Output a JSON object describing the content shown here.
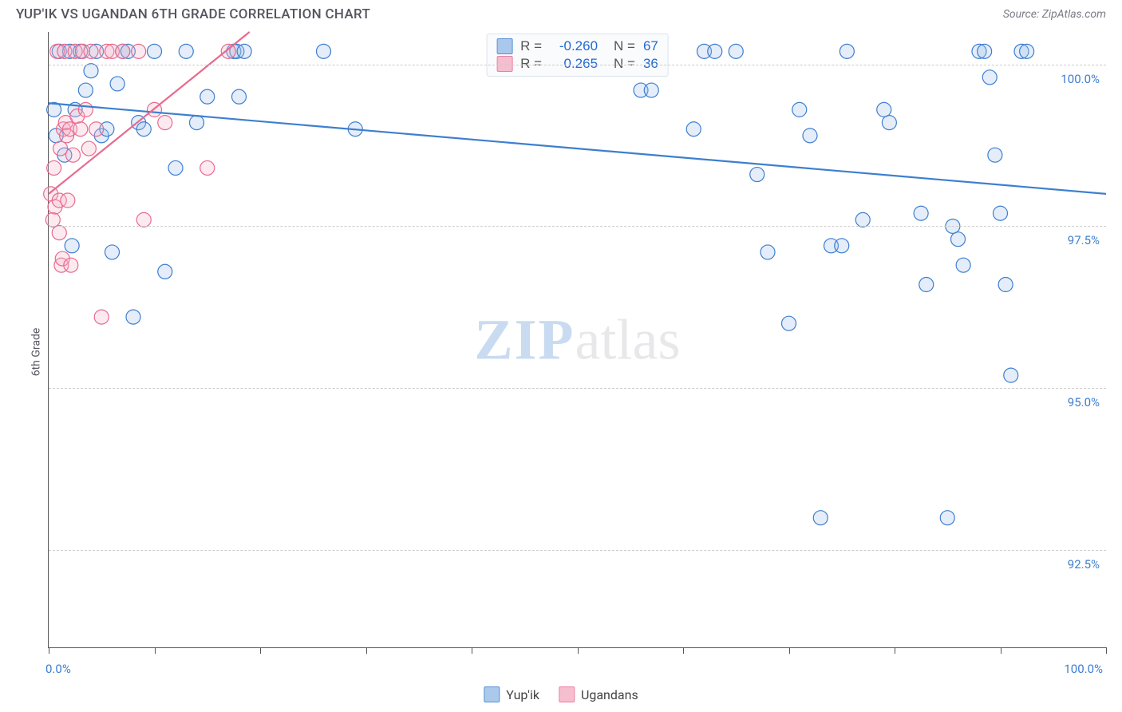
{
  "title": "YUP'IK VS UGANDAN 6TH GRADE CORRELATION CHART",
  "source": "Source: ZipAtlas.com",
  "y_axis_label": "6th Grade",
  "watermark": {
    "part1": "ZIP",
    "part2": "atlas"
  },
  "chart": {
    "type": "scatter",
    "background_color": "#ffffff",
    "grid_color": "#cfcfcf",
    "grid_dash": "4,4",
    "axis_color": "#555555",
    "xlim": [
      0,
      100
    ],
    "ylim": [
      91.0,
      100.5
    ],
    "x_ticks": [
      0,
      10,
      20,
      30,
      40,
      50,
      60,
      70,
      80,
      90,
      100
    ],
    "x_tick_labels": [
      {
        "pos": 0,
        "label": "0.0%"
      },
      {
        "pos": 100,
        "label": "100.0%"
      }
    ],
    "y_ticks": [
      {
        "pos": 92.5,
        "label": "92.5%"
      },
      {
        "pos": 95.0,
        "label": "95.0%"
      },
      {
        "pos": 97.5,
        "label": "97.5%"
      },
      {
        "pos": 100.0,
        "label": "100.0%"
      }
    ],
    "tick_label_color": "#3d7fcf",
    "tick_label_fontsize": 15,
    "marker_radius": 9,
    "marker_stroke_width": 1.2,
    "marker_fill_opacity": 0.28,
    "line_width": 2.2
  },
  "series": [
    {
      "name": "Yup'ik",
      "color": "#3d7fcf",
      "fill": "#9dc0e8",
      "R": "-0.260",
      "N": "67",
      "trend": {
        "x1": 0,
        "y1": 99.4,
        "x2": 100,
        "y2": 98.0
      },
      "points": [
        [
          0.5,
          99.3
        ],
        [
          0.7,
          98.9
        ],
        [
          1.0,
          100.2
        ],
        [
          1.5,
          98.6
        ],
        [
          2.0,
          100.2
        ],
        [
          2.2,
          97.2
        ],
        [
          2.5,
          99.3
        ],
        [
          3.0,
          100.2
        ],
        [
          3.5,
          99.6
        ],
        [
          4.0,
          99.9
        ],
        [
          4.5,
          100.2
        ],
        [
          5.0,
          98.9
        ],
        [
          5.5,
          99.0
        ],
        [
          6.0,
          97.1
        ],
        [
          6.5,
          99.7
        ],
        [
          7.0,
          100.2
        ],
        [
          7.5,
          100.2
        ],
        [
          8.0,
          96.1
        ],
        [
          8.5,
          99.1
        ],
        [
          9.0,
          99.0
        ],
        [
          10.0,
          100.2
        ],
        [
          11.0,
          96.8
        ],
        [
          12.0,
          98.4
        ],
        [
          13.0,
          100.2
        ],
        [
          14.0,
          99.1
        ],
        [
          15.0,
          99.5
        ],
        [
          17.5,
          100.2
        ],
        [
          17.8,
          100.2
        ],
        [
          18.0,
          99.5
        ],
        [
          18.5,
          100.2
        ],
        [
          26.0,
          100.2
        ],
        [
          29.0,
          99.0
        ],
        [
          47.0,
          100.2
        ],
        [
          55.0,
          100.2
        ],
        [
          56.0,
          99.6
        ],
        [
          57.0,
          99.6
        ],
        [
          61.0,
          99.0
        ],
        [
          62.0,
          100.2
        ],
        [
          63.0,
          100.2
        ],
        [
          65.0,
          100.2
        ],
        [
          67.0,
          98.3
        ],
        [
          68.0,
          97.1
        ],
        [
          70.0,
          96.0
        ],
        [
          71.0,
          99.3
        ],
        [
          72.0,
          98.9
        ],
        [
          73.0,
          93.0
        ],
        [
          74.0,
          97.2
        ],
        [
          75.0,
          97.2
        ],
        [
          75.5,
          100.2
        ],
        [
          77.0,
          97.6
        ],
        [
          79.0,
          99.3
        ],
        [
          79.5,
          99.1
        ],
        [
          82.5,
          97.7
        ],
        [
          83.0,
          96.6
        ],
        [
          85.0,
          93.0
        ],
        [
          85.5,
          97.5
        ],
        [
          86.0,
          97.3
        ],
        [
          86.5,
          96.9
        ],
        [
          88.0,
          100.2
        ],
        [
          88.5,
          100.2
        ],
        [
          89.0,
          99.8
        ],
        [
          89.5,
          98.6
        ],
        [
          90.0,
          97.7
        ],
        [
          90.5,
          96.6
        ],
        [
          91.0,
          95.2
        ],
        [
          92.0,
          100.2
        ],
        [
          92.5,
          100.2
        ]
      ]
    },
    {
      "name": "Ugandans",
      "color": "#e86a8f",
      "fill": "#f4b4c8",
      "R": "0.265",
      "N": "36",
      "trend": {
        "x1": 0,
        "y1": 98.0,
        "x2": 19,
        "y2": 100.5
      },
      "points": [
        [
          0.2,
          98.0
        ],
        [
          0.4,
          97.6
        ],
        [
          0.5,
          98.4
        ],
        [
          0.6,
          97.8
        ],
        [
          0.8,
          100.2
        ],
        [
          1.0,
          97.9
        ],
        [
          1.0,
          97.4
        ],
        [
          1.1,
          98.7
        ],
        [
          1.2,
          96.9
        ],
        [
          1.3,
          97.0
        ],
        [
          1.4,
          99.0
        ],
        [
          1.5,
          100.2
        ],
        [
          1.6,
          99.1
        ],
        [
          1.7,
          98.9
        ],
        [
          1.8,
          97.9
        ],
        [
          2.0,
          99.0
        ],
        [
          2.1,
          96.9
        ],
        [
          2.3,
          98.6
        ],
        [
          2.5,
          100.2
        ],
        [
          2.7,
          99.2
        ],
        [
          3.0,
          99.0
        ],
        [
          3.2,
          100.2
        ],
        [
          3.5,
          99.3
        ],
        [
          3.8,
          98.7
        ],
        [
          4.0,
          100.2
        ],
        [
          4.5,
          99.0
        ],
        [
          5.0,
          96.1
        ],
        [
          5.5,
          100.2
        ],
        [
          6.0,
          100.2
        ],
        [
          7.0,
          100.2
        ],
        [
          8.5,
          100.2
        ],
        [
          9.0,
          97.6
        ],
        [
          10.0,
          99.3
        ],
        [
          11.0,
          99.1
        ],
        [
          15.0,
          98.4
        ],
        [
          17.0,
          100.2
        ]
      ]
    }
  ],
  "legend_top": {
    "r_label": "R =",
    "n_label": "N ="
  },
  "footer_legend": [
    {
      "label": "Yup'ik",
      "series": 0
    },
    {
      "label": "Ugandans",
      "series": 1
    }
  ]
}
